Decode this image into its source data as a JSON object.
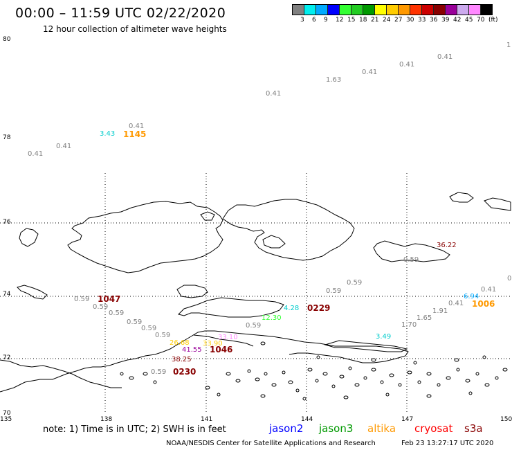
{
  "title": "00:00 – 11:59 UTC 02/22/2020",
  "subtitle": "12 hour collection of altimeter wave heights",
  "colorbar": {
    "colors": [
      "#808080",
      "#00eeee",
      "#00aaff",
      "#0000ff",
      "#33ff33",
      "#22cc22",
      "#009900",
      "#ffff00",
      "#ffcc00",
      "#ff9900",
      "#ff3300",
      "#cc0000",
      "#880000",
      "#990099",
      "#ccaaee",
      "#ff88ff",
      "#000000"
    ],
    "labels": [
      "3",
      "6",
      "9",
      "12",
      "15",
      "18",
      "21",
      "24",
      "27",
      "30",
      "33",
      "36",
      "39",
      "42",
      "45",
      "70",
      "(ft)"
    ]
  },
  "lat_labels": [
    "80",
    "78",
    "76",
    "74",
    "72",
    "70"
  ],
  "lon_labels": [
    "135",
    "138",
    "141",
    "144",
    "147",
    "150"
  ],
  "wave_values": [
    {
      "text": "1",
      "color": "#808080"
    },
    {
      "text": "0.41",
      "color": "#808080"
    },
    {
      "text": "0.41",
      "color": "#808080"
    },
    {
      "text": "0.41",
      "color": "#808080"
    },
    {
      "text": "1.63",
      "color": "#808080"
    },
    {
      "text": "0.41",
      "color": "#808080"
    },
    {
      "text": "0.41",
      "color": "#808080"
    },
    {
      "text": "3.43",
      "color": "#00cccc"
    },
    {
      "text": "0.41",
      "color": "#808080"
    },
    {
      "text": "0.41",
      "color": "#808080"
    },
    {
      "text": "36.22",
      "color": "#880000"
    },
    {
      "text": "0.59",
      "color": "#808080"
    },
    {
      "text": "0",
      "color": "#808080"
    },
    {
      "text": "0.59",
      "color": "#808080"
    },
    {
      "text": "0.59",
      "color": "#808080"
    },
    {
      "text": "0.41",
      "color": "#808080"
    },
    {
      "text": "6.94",
      "color": "#00aaff"
    },
    {
      "text": "0.41",
      "color": "#808080"
    },
    {
      "text": "0.59",
      "color": "#808080"
    },
    {
      "text": "0.59",
      "color": "#808080"
    },
    {
      "text": "0.59",
      "color": "#808080"
    },
    {
      "text": "0.59",
      "color": "#808080"
    },
    {
      "text": "0.59",
      "color": "#808080"
    },
    {
      "text": "0.59",
      "color": "#808080"
    },
    {
      "text": "4.28",
      "color": "#00cccc"
    },
    {
      "text": "1.91",
      "color": "#808080"
    },
    {
      "text": "1.65",
      "color": "#808080"
    },
    {
      "text": "12.30",
      "color": "#33ff33"
    },
    {
      "text": "0.59",
      "color": "#808080"
    },
    {
      "text": "1.70",
      "color": "#808080"
    },
    {
      "text": "3.49",
      "color": "#00cccc"
    },
    {
      "text": "26.68",
      "color": "#ffcc00"
    },
    {
      "text": "33.90",
      "color": "#ffcc00"
    },
    {
      "text": "33.10",
      "color": "#ff88ff"
    },
    {
      "text": "41.55",
      "color": "#990099"
    },
    {
      "text": "38.25",
      "color": "#880000"
    },
    {
      "text": "0.59",
      "color": "#808080"
    }
  ],
  "time_labels": [
    {
      "text": "1145",
      "color": "#ff9900"
    },
    {
      "text": "1047",
      "color": "#880000"
    },
    {
      "text": "0229",
      "color": "#880000"
    },
    {
      "text": "1006",
      "color": "#ff9900"
    },
    {
      "text": "1046",
      "color": "#880000"
    },
    {
      "text": "0230",
      "color": "#880000"
    }
  ],
  "note": "note: 1) Time is in UTC; 2) SWH is in feet",
  "legend": [
    {
      "text": "jason2",
      "color": "#0000ff"
    },
    {
      "text": "jason3",
      "color": "#009900"
    },
    {
      "text": "altika",
      "color": "#ff9900"
    },
    {
      "text": "cryosat",
      "color": "#ff0000"
    },
    {
      "text": "s3a",
      "color": "#880000"
    }
  ],
  "credit": "NOAA/NESDIS Center for Satellite Applications and Research",
  "credit_time": "Feb 23 13:27:17 UTC 2020"
}
